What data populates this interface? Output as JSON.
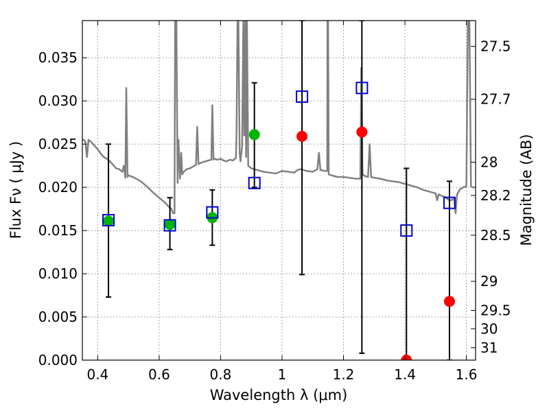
{
  "chart_data": {
    "type": "scatter",
    "xlabel": "Wavelength  λ (μm)",
    "ylabel": "Flux  Fν  ( μJy )",
    "y2label": "Magnitude (AB)",
    "xlim": [
      0.35,
      1.63
    ],
    "ylim": [
      0.0,
      0.0393
    ],
    "grid": true,
    "x_ticks": [
      {
        "value": 0.4,
        "label": "0.4"
      },
      {
        "value": 0.6,
        "label": "0.6"
      },
      {
        "value": 0.8,
        "label": "0.8"
      },
      {
        "value": 1.0,
        "label": "1"
      },
      {
        "value": 1.2,
        "label": "1.2"
      },
      {
        "value": 1.4,
        "label": "1.4"
      },
      {
        "value": 1.6,
        "label": "1.6"
      }
    ],
    "y_ticks": [
      {
        "value": 0.0,
        "label": "0.000"
      },
      {
        "value": 0.005,
        "label": "0.005"
      },
      {
        "value": 0.01,
        "label": "0.010"
      },
      {
        "value": 0.015,
        "label": "0.015"
      },
      {
        "value": 0.02,
        "label": "0.020"
      },
      {
        "value": 0.025,
        "label": "0.025"
      },
      {
        "value": 0.03,
        "label": "0.030"
      },
      {
        "value": 0.035,
        "label": "0.035"
      }
    ],
    "mag_ticks": [
      {
        "value": 27.5,
        "label": "27.5"
      },
      {
        "value": 27.7,
        "label": "27.7"
      },
      {
        "value": 28.0,
        "label": "28"
      },
      {
        "value": 28.2,
        "label": "28.2"
      },
      {
        "value": 28.5,
        "label": "28.5"
      },
      {
        "value": 29.0,
        "label": "29"
      },
      {
        "value": 29.5,
        "label": "29.5"
      },
      {
        "value": 30.0,
        "label": "30"
      },
      {
        "value": 31.0,
        "label": "31"
      }
    ],
    "colors": {
      "model": "#808080",
      "observed_detected": "#00b400",
      "observed_nondetected": "#ff0000",
      "model_band": "#0000cc",
      "errorbar": "#000000",
      "grid": "#888888"
    },
    "model_spectrum": [
      [
        0.35,
        0.0255
      ],
      [
        0.355,
        0.0255
      ],
      [
        0.36,
        0.0252
      ],
      [
        0.365,
        0.0235
      ],
      [
        0.37,
        0.0255
      ],
      [
        0.38,
        0.0252
      ],
      [
        0.39,
        0.0248
      ],
      [
        0.4,
        0.0244
      ],
      [
        0.41,
        0.0239
      ],
      [
        0.42,
        0.0235
      ],
      [
        0.43,
        0.0233
      ],
      [
        0.44,
        0.023
      ],
      [
        0.45,
        0.0226
      ],
      [
        0.46,
        0.0222
      ],
      [
        0.47,
        0.0221
      ],
      [
        0.48,
        0.0218
      ],
      [
        0.485,
        0.0225
      ],
      [
        0.49,
        0.0211
      ],
      [
        0.493,
        0.0315
      ],
      [
        0.497,
        0.0212
      ],
      [
        0.5,
        0.0214
      ],
      [
        0.52,
        0.0211
      ],
      [
        0.54,
        0.0207
      ],
      [
        0.56,
        0.0201
      ],
      [
        0.58,
        0.0194
      ],
      [
        0.6,
        0.0188
      ],
      [
        0.62,
        0.0182
      ],
      [
        0.63,
        0.0178
      ],
      [
        0.64,
        0.0175
      ],
      [
        0.645,
        0.017
      ],
      [
        0.65,
        0.017
      ],
      [
        0.652,
        0.0393
      ],
      [
        0.656,
        0.0393
      ],
      [
        0.66,
        0.0205
      ],
      [
        0.663,
        0.0255
      ],
      [
        0.668,
        0.021
      ],
      [
        0.672,
        0.024
      ],
      [
        0.675,
        0.0215
      ],
      [
        0.68,
        0.0218
      ],
      [
        0.69,
        0.0221
      ],
      [
        0.7,
        0.0222
      ],
      [
        0.71,
        0.0224
      ],
      [
        0.72,
        0.0226
      ],
      [
        0.724,
        0.027
      ],
      [
        0.728,
        0.0227
      ],
      [
        0.74,
        0.0229
      ],
      [
        0.75,
        0.023
      ],
      [
        0.76,
        0.0231
      ],
      [
        0.77,
        0.0232
      ],
      [
        0.773,
        0.0295
      ],
      [
        0.777,
        0.0232
      ],
      [
        0.78,
        0.0233
      ],
      [
        0.79,
        0.0232
      ],
      [
        0.8,
        0.0233
      ],
      [
        0.81,
        0.0231
      ],
      [
        0.82,
        0.023
      ],
      [
        0.83,
        0.0232
      ],
      [
        0.84,
        0.0231
      ],
      [
        0.85,
        0.0234
      ],
      [
        0.852,
        0.0265
      ],
      [
        0.855,
        0.0393
      ],
      [
        0.858,
        0.0393
      ],
      [
        0.862,
        0.024
      ],
      [
        0.865,
        0.023
      ],
      [
        0.87,
        0.0248
      ],
      [
        0.874,
        0.0393
      ],
      [
        0.877,
        0.026
      ],
      [
        0.88,
        0.0393
      ],
      [
        0.883,
        0.0235
      ],
      [
        0.886,
        0.0393
      ],
      [
        0.89,
        0.0225
      ],
      [
        0.9,
        0.0222
      ],
      [
        0.92,
        0.022
      ],
      [
        0.94,
        0.0218
      ],
      [
        0.96,
        0.0217
      ],
      [
        0.98,
        0.0216
      ],
      [
        1.0,
        0.0219
      ],
      [
        1.02,
        0.0218
      ],
      [
        1.04,
        0.0217
      ],
      [
        1.05,
        0.022
      ],
      [
        1.06,
        0.0221
      ],
      [
        1.08,
        0.0219
      ],
      [
        1.1,
        0.0218
      ],
      [
        1.115,
        0.0221
      ],
      [
        1.12,
        0.024
      ],
      [
        1.125,
        0.022
      ],
      [
        1.14,
        0.0219
      ],
      [
        1.147,
        0.0219
      ],
      [
        1.148,
        0.0393
      ],
      [
        1.15,
        0.0393
      ],
      [
        1.152,
        0.0215
      ],
      [
        1.16,
        0.0214
      ],
      [
        1.18,
        0.0212
      ],
      [
        1.2,
        0.0212
      ],
      [
        1.22,
        0.0211
      ],
      [
        1.24,
        0.021
      ],
      [
        1.255,
        0.021
      ],
      [
        1.258,
        0.0338
      ],
      [
        1.262,
        0.0215
      ],
      [
        1.27,
        0.0213
      ],
      [
        1.28,
        0.0212
      ],
      [
        1.285,
        0.025
      ],
      [
        1.29,
        0.0212
      ],
      [
        1.3,
        0.0211
      ],
      [
        1.32,
        0.021
      ],
      [
        1.34,
        0.0208
      ],
      [
        1.36,
        0.0207
      ],
      [
        1.38,
        0.0206
      ],
      [
        1.4,
        0.0204
      ],
      [
        1.42,
        0.0202
      ],
      [
        1.44,
        0.02
      ],
      [
        1.46,
        0.0197
      ],
      [
        1.48,
        0.0195
      ],
      [
        1.5,
        0.0193
      ],
      [
        1.505,
        0.0185
      ],
      [
        1.51,
        0.0192
      ],
      [
        1.52,
        0.019
      ],
      [
        1.53,
        0.0189
      ],
      [
        1.54,
        0.0186
      ],
      [
        1.55,
        0.0185
      ],
      [
        1.56,
        0.0187
      ],
      [
        1.565,
        0.017
      ],
      [
        1.57,
        0.0192
      ],
      [
        1.58,
        0.0198
      ],
      [
        1.59,
        0.02
      ],
      [
        1.6,
        0.0201
      ],
      [
        1.605,
        0.0393
      ],
      [
        1.61,
        0.0393
      ],
      [
        1.615,
        0.0201
      ],
      [
        1.62,
        0.02
      ],
      [
        1.63,
        0.02
      ]
    ],
    "observed_points": [
      {
        "x": 0.435,
        "y": 0.0161,
        "color": "observed_detected"
      },
      {
        "x": 0.635,
        "y": 0.0157,
        "color": "observed_detected"
      },
      {
        "x": 0.773,
        "y": 0.0165,
        "color": "observed_detected"
      },
      {
        "x": 0.91,
        "y": 0.0261,
        "color": "observed_detected"
      },
      {
        "x": 1.065,
        "y": 0.0259,
        "color": "observed_nondetected"
      },
      {
        "x": 1.26,
        "y": 0.0264,
        "color": "observed_nondetected"
      },
      {
        "x": 1.405,
        "y": 0.0,
        "color": "observed_nondetected"
      },
      {
        "x": 1.545,
        "y": 0.0068,
        "color": "observed_nondetected"
      }
    ],
    "error_bars": [
      {
        "x": 0.435,
        "low": 0.0073,
        "high": 0.025
      },
      {
        "x": 0.635,
        "low": 0.0128,
        "high": 0.0188
      },
      {
        "x": 0.773,
        "low": 0.0133,
        "high": 0.0197
      },
      {
        "x": 0.91,
        "low": 0.02,
        "high": 0.0321
      },
      {
        "x": 1.065,
        "low": 0.0099,
        "high": 0.0393
      },
      {
        "x": 1.26,
        "low": 0.0008,
        "high": 0.0393
      },
      {
        "x": 1.405,
        "low": 0.0,
        "high": 0.0222
      },
      {
        "x": 1.545,
        "low": 0.0,
        "high": 0.0207
      }
    ],
    "model_band_points": [
      {
        "x": 0.435,
        "y": 0.0162
      },
      {
        "x": 0.635,
        "y": 0.0156
      },
      {
        "x": 0.773,
        "y": 0.0171
      },
      {
        "x": 0.91,
        "y": 0.0205
      },
      {
        "x": 1.065,
        "y": 0.0305
      },
      {
        "x": 1.26,
        "y": 0.0315
      },
      {
        "x": 1.405,
        "y": 0.015
      },
      {
        "x": 1.545,
        "y": 0.0182
      }
    ]
  }
}
